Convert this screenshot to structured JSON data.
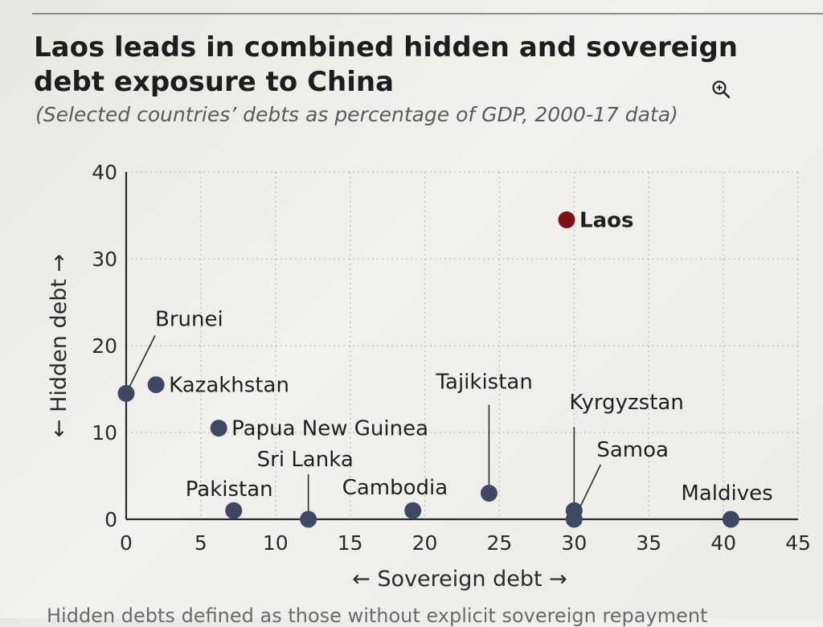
{
  "title": "Laos leads in combined hidden and sovereign debt exposure to China",
  "subtitle": "(Selected countries’ debts as percentage of GDP, 2000-17 data)",
  "icons": {
    "zoom": "zoom-in-icon"
  },
  "footnote": "Hidden debts defined as those without explicit sovereign repayment",
  "colors": {
    "point": "#3d4865",
    "highlight": "#7d1016",
    "grid": "#b9b9b9",
    "axis": "#2a2a2e"
  },
  "chart_data": {
    "type": "scatter",
    "title": "Laos leads in combined hidden and sovereign debt exposure to China",
    "subtitle": "(Selected countries’ debts as percentage of GDP, 2000-17 data)",
    "xlabel": "← Sovereign debt →",
    "ylabel": "← Hidden debt →",
    "xlim": [
      0,
      45
    ],
    "ylim": [
      0,
      40
    ],
    "xticks": [
      0,
      5,
      10,
      15,
      20,
      25,
      30,
      35,
      40,
      45
    ],
    "yticks": [
      0,
      10,
      20,
      30,
      40
    ],
    "grid": true,
    "points": [
      {
        "label": "Laos",
        "x": 29.5,
        "y": 34.5,
        "highlight": true
      },
      {
        "label": "Brunei",
        "x": 0,
        "y": 14.5
      },
      {
        "label": "Kazakhstan",
        "x": 2,
        "y": 15.5
      },
      {
        "label": "Papua New Guinea",
        "x": 6.2,
        "y": 10.5
      },
      {
        "label": "Sri Lanka",
        "x": 12.2,
        "y": 0
      },
      {
        "label": "Pakistan",
        "x": 7.2,
        "y": 1
      },
      {
        "label": "Cambodia",
        "x": 19.2,
        "y": 1
      },
      {
        "label": "Tajikistan",
        "x": 24.3,
        "y": 3
      },
      {
        "label": "Kyrgyzstan",
        "x": 30,
        "y": 1
      },
      {
        "label": "Samoa",
        "x": 30,
        "y": 0
      },
      {
        "label": "Maldives",
        "x": 40.5,
        "y": 0
      }
    ]
  }
}
